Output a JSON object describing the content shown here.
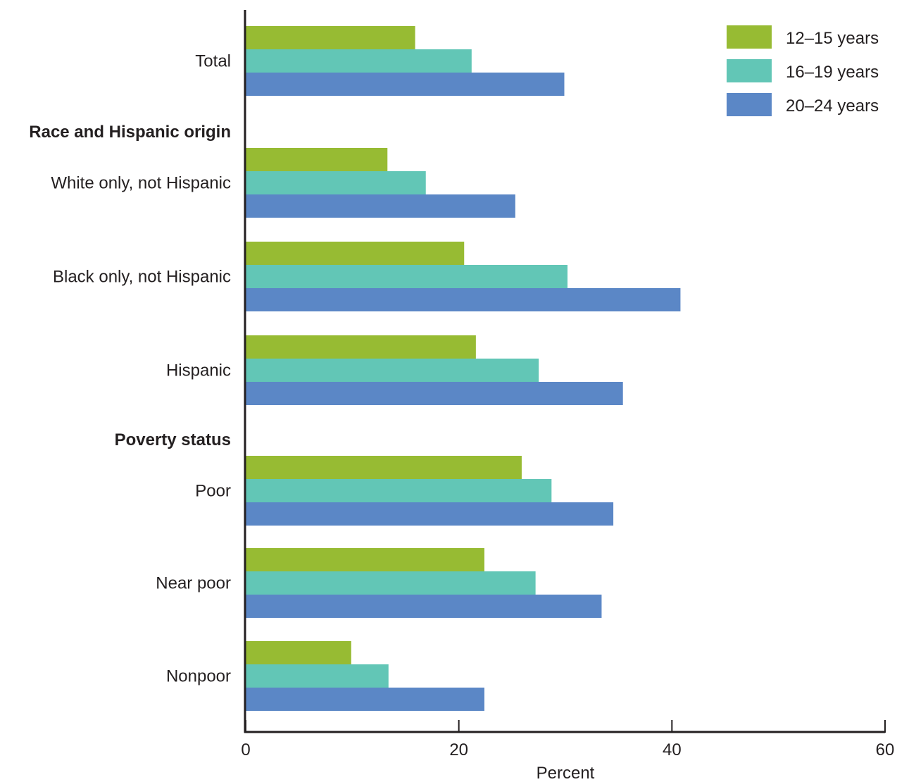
{
  "chart_data": {
    "type": "bar",
    "orientation": "horizontal",
    "title": "",
    "xlabel": "Percent",
    "ylabel": "",
    "xlim": [
      0,
      60
    ],
    "xticks": [
      "0",
      "20",
      "40",
      "60"
    ],
    "grid": false,
    "legend_position": "top-right",
    "sections": [
      {
        "heading": "Race and Hispanic origin",
        "before_category": "White only, not Hispanic"
      },
      {
        "heading": "Poverty status",
        "before_category": "Poor"
      }
    ],
    "categories": [
      "Total",
      "White only, not Hispanic",
      "Black only, not Hispanic",
      "Hispanic",
      "Poor",
      "Near poor",
      "Nonpoor"
    ],
    "series": [
      {
        "name": "12–15 years",
        "color": "#97bb33",
        "values": [
          15.9,
          13.3,
          20.5,
          21.6,
          25.9,
          22.4,
          9.9
        ]
      },
      {
        "name": "16–19 years",
        "color": "#62c6b6",
        "values": [
          21.2,
          16.9,
          30.2,
          27.5,
          28.7,
          27.2,
          13.4
        ]
      },
      {
        "name": "20–24 years",
        "color": "#5b87c6",
        "values": [
          29.9,
          25.3,
          40.8,
          35.4,
          34.5,
          33.4,
          22.4
        ]
      }
    ]
  }
}
